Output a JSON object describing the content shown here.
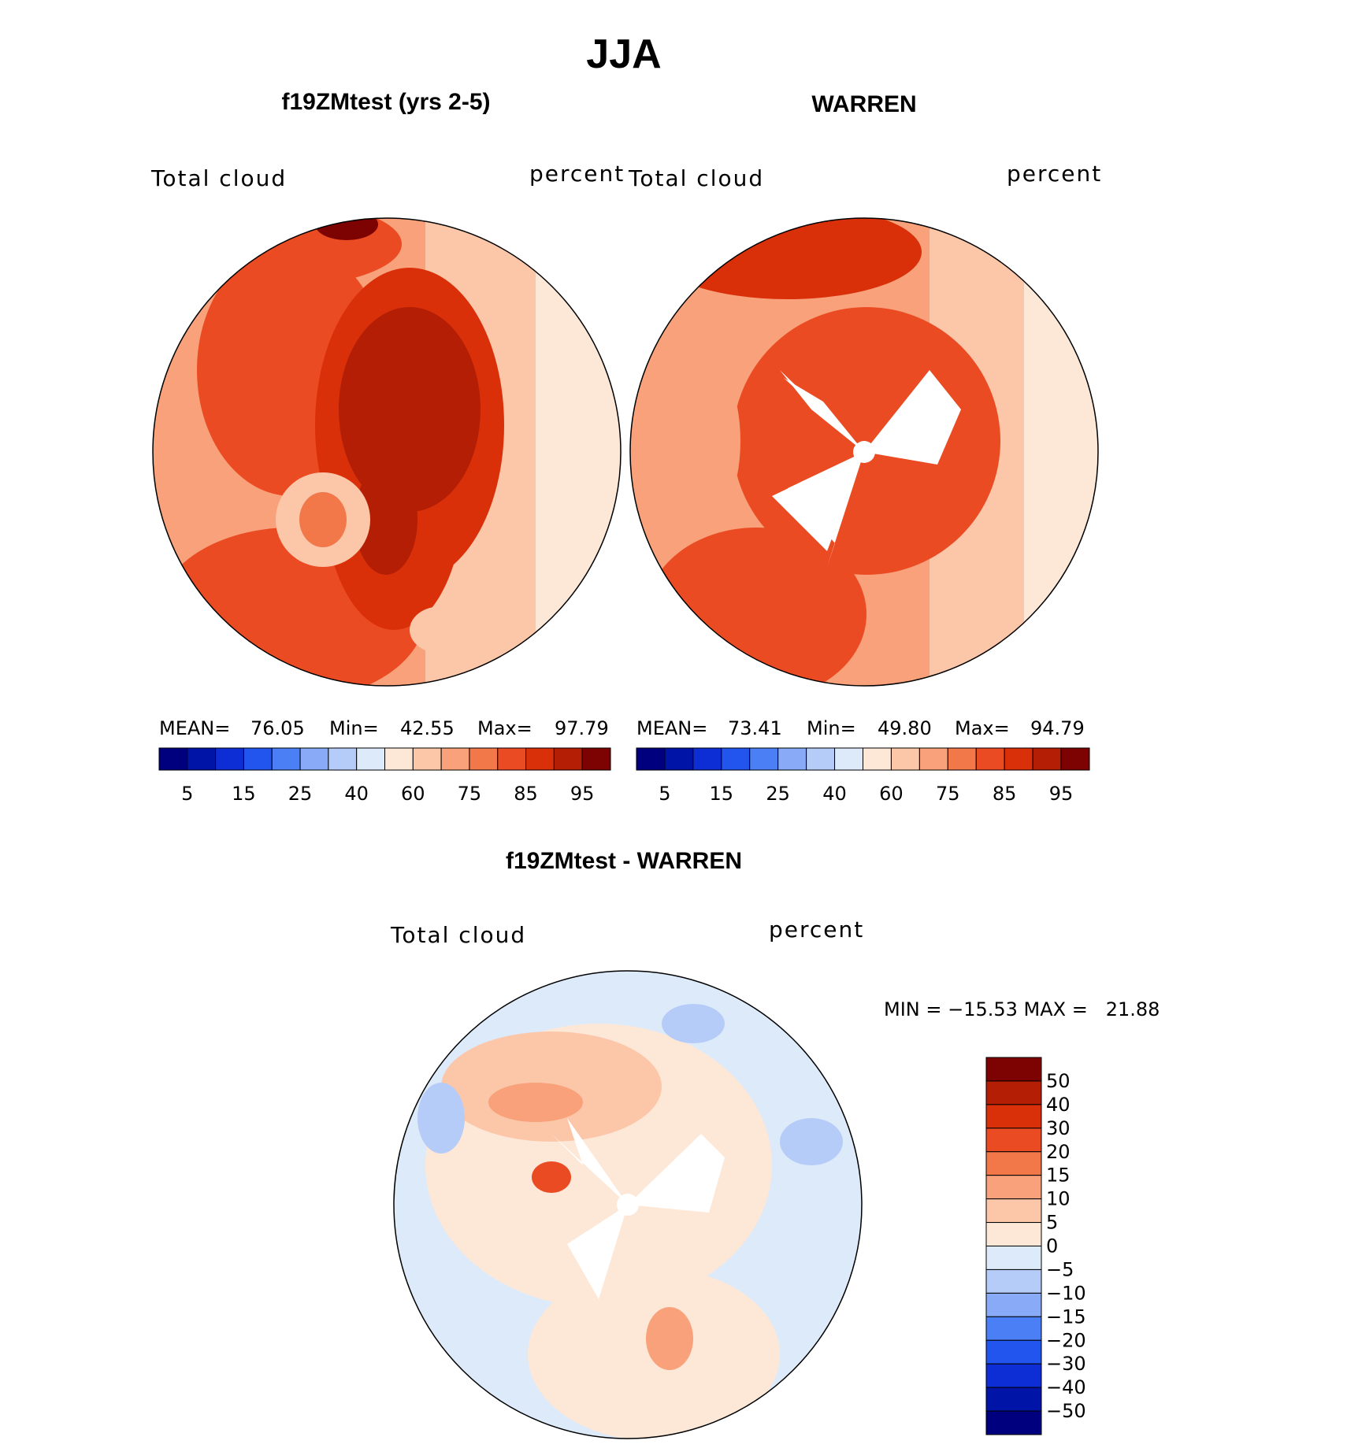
{
  "figure": {
    "title": "JJA"
  },
  "colors": {
    "abs_scale": [
      "#00007f",
      "#0014a8",
      "#0d2ed4",
      "#2255ee",
      "#4a7ff5",
      "#88aaf7",
      "#b6ccf8",
      "#dceafa",
      "#fde8d8",
      "#fcc6a9",
      "#f8a17a",
      "#f2784a",
      "#eb4b22",
      "#d9300a",
      "#b31e05",
      "#7d0303"
    ],
    "diff_scale": [
      "#00007f",
      "#0014a8",
      "#0d2ed4",
      "#2255ee",
      "#4a7ff5",
      "#88aaf7",
      "#b6ccf8",
      "#dceafa",
      "#fde8d8",
      "#fcc6a9",
      "#f8a17a",
      "#f2784a",
      "#eb4b22",
      "#d9300a",
      "#b31e05",
      "#7d0303"
    ]
  },
  "chart_data": [
    {
      "type": "heatmap",
      "title": "f19ZMtest (yrs 2-5)",
      "field_label": "Total cloud",
      "units": "percent",
      "projection": "north polar stereographic",
      "stats": {
        "mean_label": "MEAN=",
        "mean": "76.05",
        "min_label": "Min=",
        "min": "42.55",
        "max_label": "Max=",
        "max": "97.79"
      },
      "colorbar_ticks": [
        "5",
        "15",
        "25",
        "40",
        "60",
        "75",
        "85",
        "95"
      ]
    },
    {
      "type": "heatmap",
      "title": "WARREN",
      "field_label": "Total cloud",
      "units": "percent",
      "projection": "north polar stereographic",
      "stats": {
        "mean_label": "MEAN=",
        "mean": "73.41",
        "min_label": "Min=",
        "min": "49.80",
        "max_label": "Max=",
        "max": "94.79"
      },
      "colorbar_ticks": [
        "5",
        "15",
        "25",
        "40",
        "60",
        "75",
        "85",
        "95"
      ]
    },
    {
      "type": "heatmap",
      "title": "f19ZMtest - WARREN",
      "field_label": "Total cloud",
      "units": "percent",
      "projection": "north polar stereographic",
      "stats_text": "MIN = −15.53 MAX =   21.88",
      "colorbar_ticks": [
        "50",
        "40",
        "30",
        "20",
        "15",
        "10",
        "5",
        "0",
        "−5",
        "−10",
        "−15",
        "−20",
        "−30",
        "−40",
        "−50"
      ]
    }
  ]
}
